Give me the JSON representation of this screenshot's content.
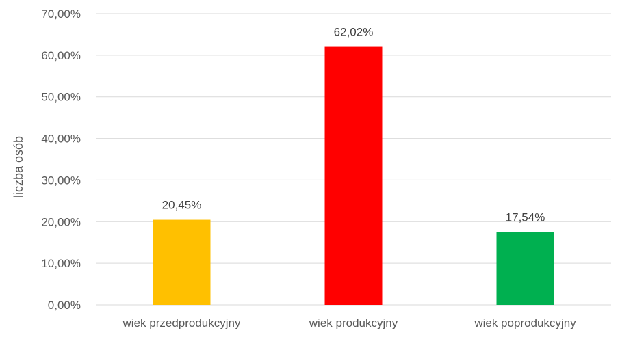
{
  "chart_data": {
    "type": "bar",
    "categories": [
      "wiek przedprodukcyjny",
      "wiek produkcyjny",
      "wiek poprodukcyjny"
    ],
    "values": [
      20.45,
      62.02,
      17.54
    ],
    "value_labels": [
      "20,45%",
      "62,02%",
      "17,54%"
    ],
    "colors": [
      "#FFC000",
      "#FF0000",
      "#00B050"
    ],
    "ylabel": "liczba osób",
    "ylim": [
      0,
      70
    ],
    "y_ticks": [
      0,
      10,
      20,
      30,
      40,
      50,
      60,
      70
    ],
    "y_tick_labels": [
      "0,00%",
      "10,00%",
      "20,00%",
      "30,00%",
      "40,00%",
      "50,00%",
      "60,00%",
      "70,00%"
    ],
    "grid": true,
    "legend": "none"
  }
}
